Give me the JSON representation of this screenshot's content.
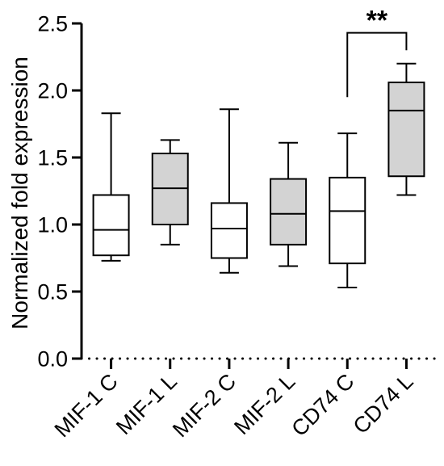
{
  "chart_data": {
    "type": "box",
    "ylabel": "Normalized fold expression",
    "xlabel": "",
    "ylim": [
      0.0,
      2.5
    ],
    "y_ticks": [
      "0.0",
      "0.5",
      "1.0",
      "1.5",
      "2.0",
      "2.5"
    ],
    "categories": [
      "MIF-1 C",
      "MIF-1 L",
      "MIF-2 C",
      "MIF-2 L",
      "CD74 C",
      "CD74 L"
    ],
    "boxes": [
      {
        "category": "MIF-1 C",
        "min": 0.73,
        "q1": 0.77,
        "median": 0.96,
        "q3": 1.22,
        "max": 1.83,
        "fill": "#ffffff"
      },
      {
        "category": "MIF-1 L",
        "min": 0.85,
        "q1": 1.0,
        "median": 1.27,
        "q3": 1.53,
        "max": 1.63,
        "fill": "#d3d3d3"
      },
      {
        "category": "MIF-2 C",
        "min": 0.64,
        "q1": 0.75,
        "median": 0.97,
        "q3": 1.16,
        "max": 1.86,
        "fill": "#ffffff"
      },
      {
        "category": "MIF-2 L",
        "min": 0.69,
        "q1": 0.85,
        "median": 1.08,
        "q3": 1.34,
        "max": 1.61,
        "fill": "#d3d3d3"
      },
      {
        "category": "CD74 C",
        "min": 0.53,
        "q1": 0.71,
        "median": 1.1,
        "q3": 1.35,
        "max": 1.68,
        "fill": "#ffffff"
      },
      {
        "category": "CD74 L",
        "min": 1.22,
        "q1": 1.36,
        "median": 1.85,
        "q3": 2.06,
        "max": 2.2,
        "fill": "#d3d3d3"
      }
    ],
    "reference_line": {
      "y": 0.0,
      "style": "dotted"
    },
    "significance": {
      "from": "CD74 C",
      "to": "CD74 L",
      "label": "**",
      "bracket_y": 2.43,
      "drop_to": [
        1.95,
        2.3
      ]
    },
    "grid": false,
    "colors": {
      "control": "#ffffff",
      "treated": "#d3d3d3",
      "stroke": "#000000"
    }
  }
}
